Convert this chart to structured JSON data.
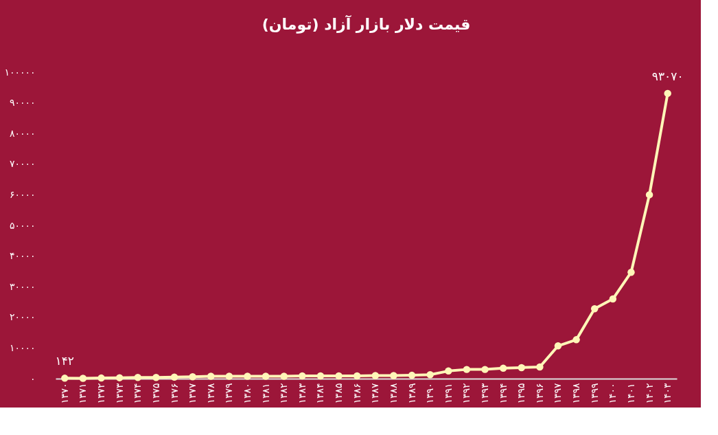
{
  "chart_data": {
    "type": "line",
    "title": "قیمت دلار بازار آزاد (تومان)",
    "categories": [
      "۱۳۷۰",
      "۱۳۷۱",
      "۱۳۷۲",
      "۱۳۷۳",
      "۱۳۷۴",
      "۱۳۷۵",
      "۱۳۷۶",
      "۱۳۷۷",
      "۱۳۷۸",
      "۱۳۷۹",
      "۱۳۸۰",
      "۱۳۸۱",
      "۱۳۸۲",
      "۱۳۸۳",
      "۱۳۸۴",
      "۱۳۸۵",
      "۱۳۸۶",
      "۱۳۸۷",
      "۱۳۸۸",
      "۱۳۸۹",
      "۱۳۹۰",
      "۱۳۹۱",
      "۱۳۹۲",
      "۱۳۹۳",
      "۱۳۹۴",
      "۱۳۹۵",
      "۱۳۹۶",
      "۱۳۹۷",
      "۱۳۹۸",
      "۱۳۹۹",
      "۱۴۰۰",
      "۱۴۰۱",
      "۱۴۰۲",
      "۱۴۰۳"
    ],
    "series": [
      {
        "color": "#fff6b8",
        "values": [
          142,
          100,
          200,
          300,
          400,
          400,
          500,
          600,
          800,
          800,
          800,
          800,
          800,
          900,
          900,
          900,
          900,
          1000,
          1000,
          1100,
          1300,
          2500,
          3000,
          3000,
          3400,
          3600,
          3800,
          10700,
          12700,
          22800,
          26000,
          34700,
          60000,
          93070
        ],
        "value_labels": [
          "۱۴۲",
          null,
          null,
          null,
          null,
          null,
          null,
          null,
          null,
          null,
          null,
          null,
          null,
          null,
          null,
          null,
          null,
          null,
          null,
          null,
          null,
          null,
          null,
          null,
          null,
          null,
          null,
          null,
          null,
          null,
          null,
          null,
          null,
          "۹۳۰۷۰"
        ]
      }
    ],
    "ylim": [
      0,
      100000
    ],
    "yticks": [
      {
        "value": 0,
        "label": "۰"
      },
      {
        "value": 10000,
        "label": "۱۰۰۰۰"
      },
      {
        "value": 20000,
        "label": "۲۰۰۰۰"
      },
      {
        "value": 30000,
        "label": "۳۰۰۰۰"
      },
      {
        "value": 40000,
        "label": "۴۰۰۰۰"
      },
      {
        "value": 50000,
        "label": "۵۰۰۰۰"
      },
      {
        "value": 60000,
        "label": "۶۰۰۰۰"
      },
      {
        "value": 70000,
        "label": "۷۰۰۰۰"
      },
      {
        "value": 80000,
        "label": "۸۰۰۰۰"
      },
      {
        "value": 90000,
        "label": "۹۰۰۰۰"
      },
      {
        "value": 100000,
        "label": "۱۰۰۰۰۰"
      }
    ],
    "grid": false,
    "marker": "circle",
    "line_style": "solid"
  }
}
